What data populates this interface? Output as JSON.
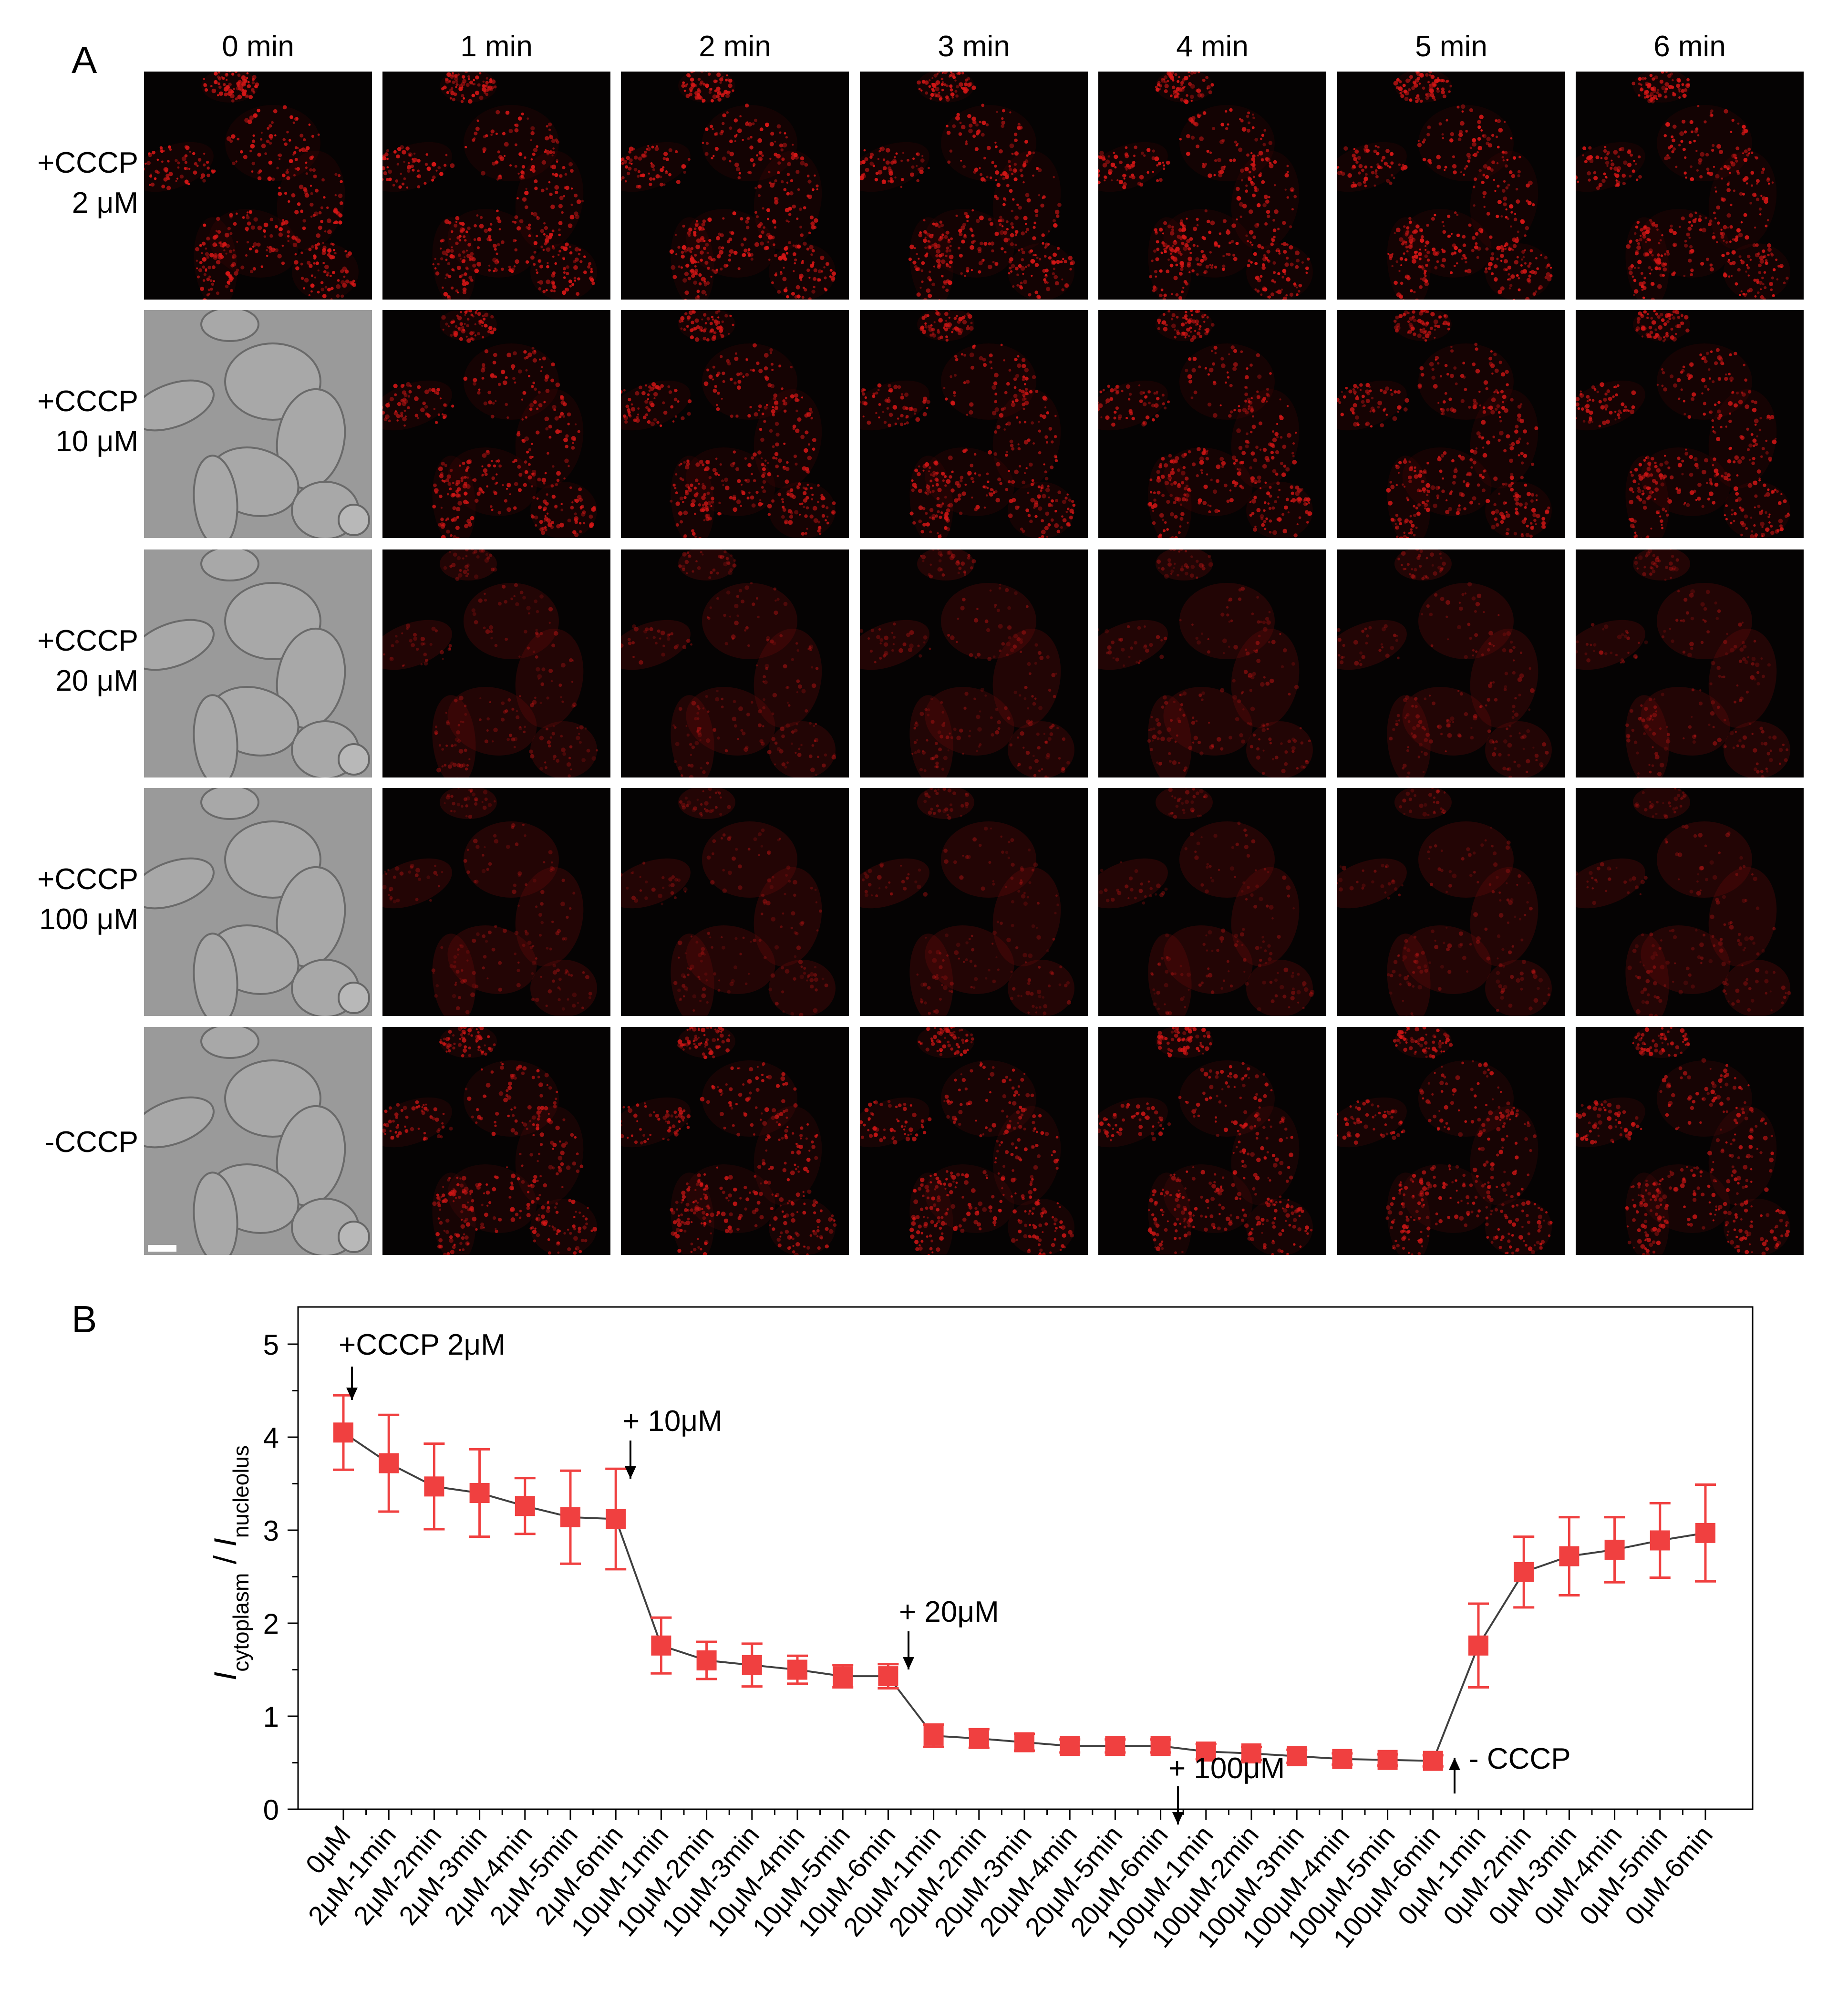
{
  "panel_a": {
    "letter": "A",
    "columns": [
      "0 min",
      "1 min",
      "2 min",
      "3 min",
      "4 min",
      "5 min",
      "6 min"
    ],
    "rows": [
      {
        "line1": "+CCCP",
        "line2": "2 μM"
      },
      {
        "line1": "+CCCP",
        "line2": "10 μM"
      },
      {
        "line1": "+CCCP",
        "line2": "20 μM"
      },
      {
        "line1": "+CCCP",
        "line2": "100 μM"
      },
      {
        "line1": "-CCCP",
        "line2": ""
      }
    ]
  },
  "panel_b": {
    "letter": "B"
  },
  "colors": {
    "fluorescence": "#d41616",
    "marker": "#f04040",
    "line": "#404040"
  },
  "chart_data": {
    "type": "scatter",
    "ylabel_main": "I",
    "ylabel_sub1": "cytoplasm",
    "ylabel_mid": " / ",
    "ylabel_main2": "I",
    "ylabel_sub2": "nucleolus",
    "ylim": [
      0,
      5.4
    ],
    "yticks": [
      "0",
      "1",
      "2",
      "3",
      "4",
      "5"
    ],
    "categories": [
      "0μM",
      "2μM-1min",
      "2μM-2min",
      "2μM-3min",
      "2μM-4min",
      "2μM-5min",
      "2μM-6min",
      "10μM-1min",
      "10μM-2min",
      "10μM-3min",
      "10μM-4min",
      "10μM-5min",
      "10μM-6min",
      "20μM-1min",
      "20μM-2min",
      "20μM-3min",
      "20μM-4min",
      "20μM-5min",
      "20μM-6min",
      "100μM-1min",
      "100μM-2min",
      "100μM-3min",
      "100μM-4min",
      "100μM-5min",
      "100μM-6min",
      "0μM-1min",
      "0μM-2min",
      "0μM-3min",
      "0μM-4min",
      "0μM-5min",
      "0μM-6min"
    ],
    "values": [
      4.05,
      3.72,
      3.47,
      3.4,
      3.26,
      3.14,
      3.12,
      1.76,
      1.6,
      1.55,
      1.5,
      1.43,
      1.43,
      0.79,
      0.76,
      0.72,
      0.68,
      0.68,
      0.68,
      0.62,
      0.6,
      0.57,
      0.54,
      0.53,
      0.52,
      1.76,
      2.55,
      2.72,
      2.79,
      2.89,
      2.97
    ],
    "errors": [
      0.4,
      0.52,
      0.46,
      0.47,
      0.3,
      0.5,
      0.54,
      0.3,
      0.2,
      0.23,
      0.15,
      0.12,
      0.13,
      0.12,
      0.1,
      0.09,
      0.07,
      0.07,
      0.07,
      0.08,
      0.07,
      0.07,
      0.06,
      0.06,
      0.06,
      0.45,
      0.38,
      0.42,
      0.35,
      0.4,
      0.52
    ],
    "annotations": [
      {
        "text": "+CCCP 2μM",
        "at_index": 0,
        "direction": "down"
      },
      {
        "text": "+ 10μM",
        "at_index": 6.3,
        "direction": "down"
      },
      {
        "text": "+ 20μM",
        "at_index": 12.4,
        "direction": "down"
      },
      {
        "text": "+ 100μM",
        "at_index": 18.3,
        "direction": "down"
      },
      {
        "text": "- CCCP",
        "at_index": 24.4,
        "direction": "up"
      }
    ]
  }
}
